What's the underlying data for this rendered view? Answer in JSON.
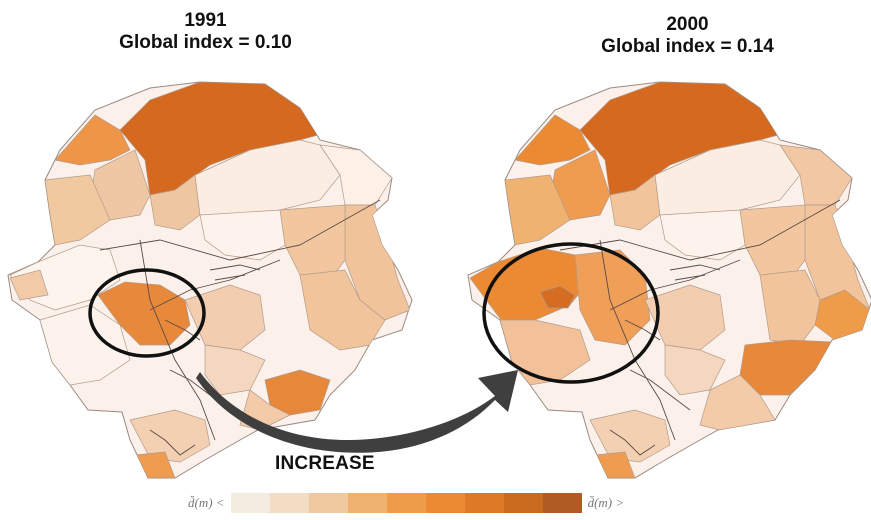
{
  "panels": [
    {
      "year": "1991",
      "index_label": "Global index = 0.10",
      "global_index": 0.1
    },
    {
      "year": "2000",
      "index_label": "Global index = 0.14",
      "global_index": 0.14
    }
  ],
  "arrow_label": "INCREASE",
  "legend": {
    "low_label": "d̆(m) <",
    "high_label": "d̆(m) >",
    "colors": [
      "#f5ece1",
      "#f3dcc4",
      "#f1c9a0",
      "#efb271",
      "#ee9b4a",
      "#ec8a33",
      "#de7a25",
      "#c96a1f",
      "#b05a24"
    ]
  }
}
